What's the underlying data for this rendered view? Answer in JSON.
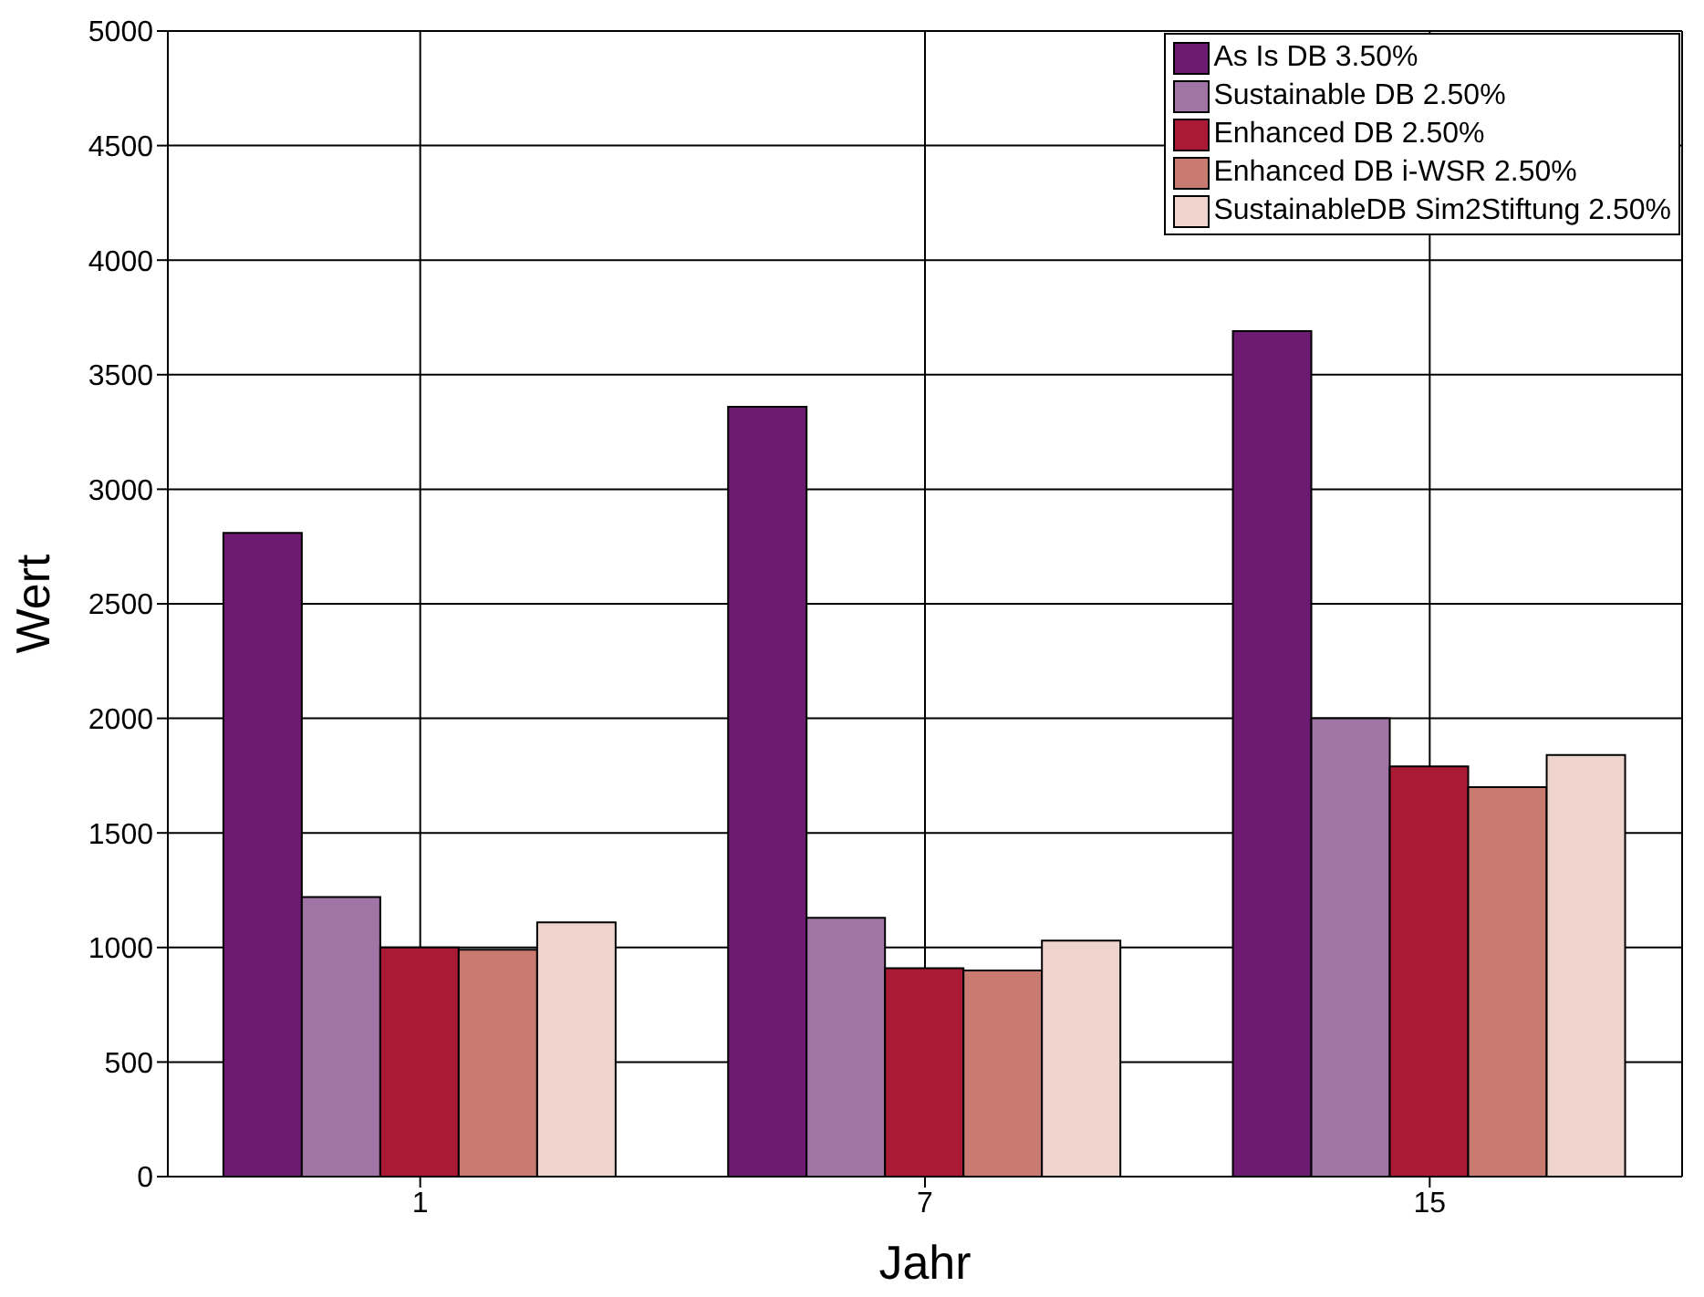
{
  "chart_data": {
    "type": "bar",
    "xlabel": "Jahr",
    "ylabel": "Wert",
    "categories": [
      "1",
      "7",
      "15"
    ],
    "series": [
      {
        "name": "As Is DB 3.50%",
        "color": "#6d1a73",
        "values": [
          2810,
          3360,
          3690
        ]
      },
      {
        "name": "Sustainable DB 2.50%",
        "color": "#a074a5",
        "values": [
          1220,
          1130,
          2000
        ]
      },
      {
        "name": "Enhanced DB 2.50%",
        "color": "#ab1a35",
        "values": [
          1000,
          910,
          1790
        ]
      },
      {
        "name": "Enhanced DB i-WSR 2.50%",
        "color": "#c97b72",
        "values": [
          990,
          900,
          1700
        ]
      },
      {
        "name": "SustainableDB Sim2Stiftung 2.50%",
        "color": "#efd4cd",
        "values": [
          1110,
          1030,
          1840
        ]
      }
    ],
    "ylim": [
      0,
      5000
    ],
    "yticks": [
      0,
      500,
      1000,
      1500,
      2000,
      2500,
      3000,
      3500,
      4000,
      4500,
      5000
    ],
    "grid": true,
    "legend": "top right"
  }
}
